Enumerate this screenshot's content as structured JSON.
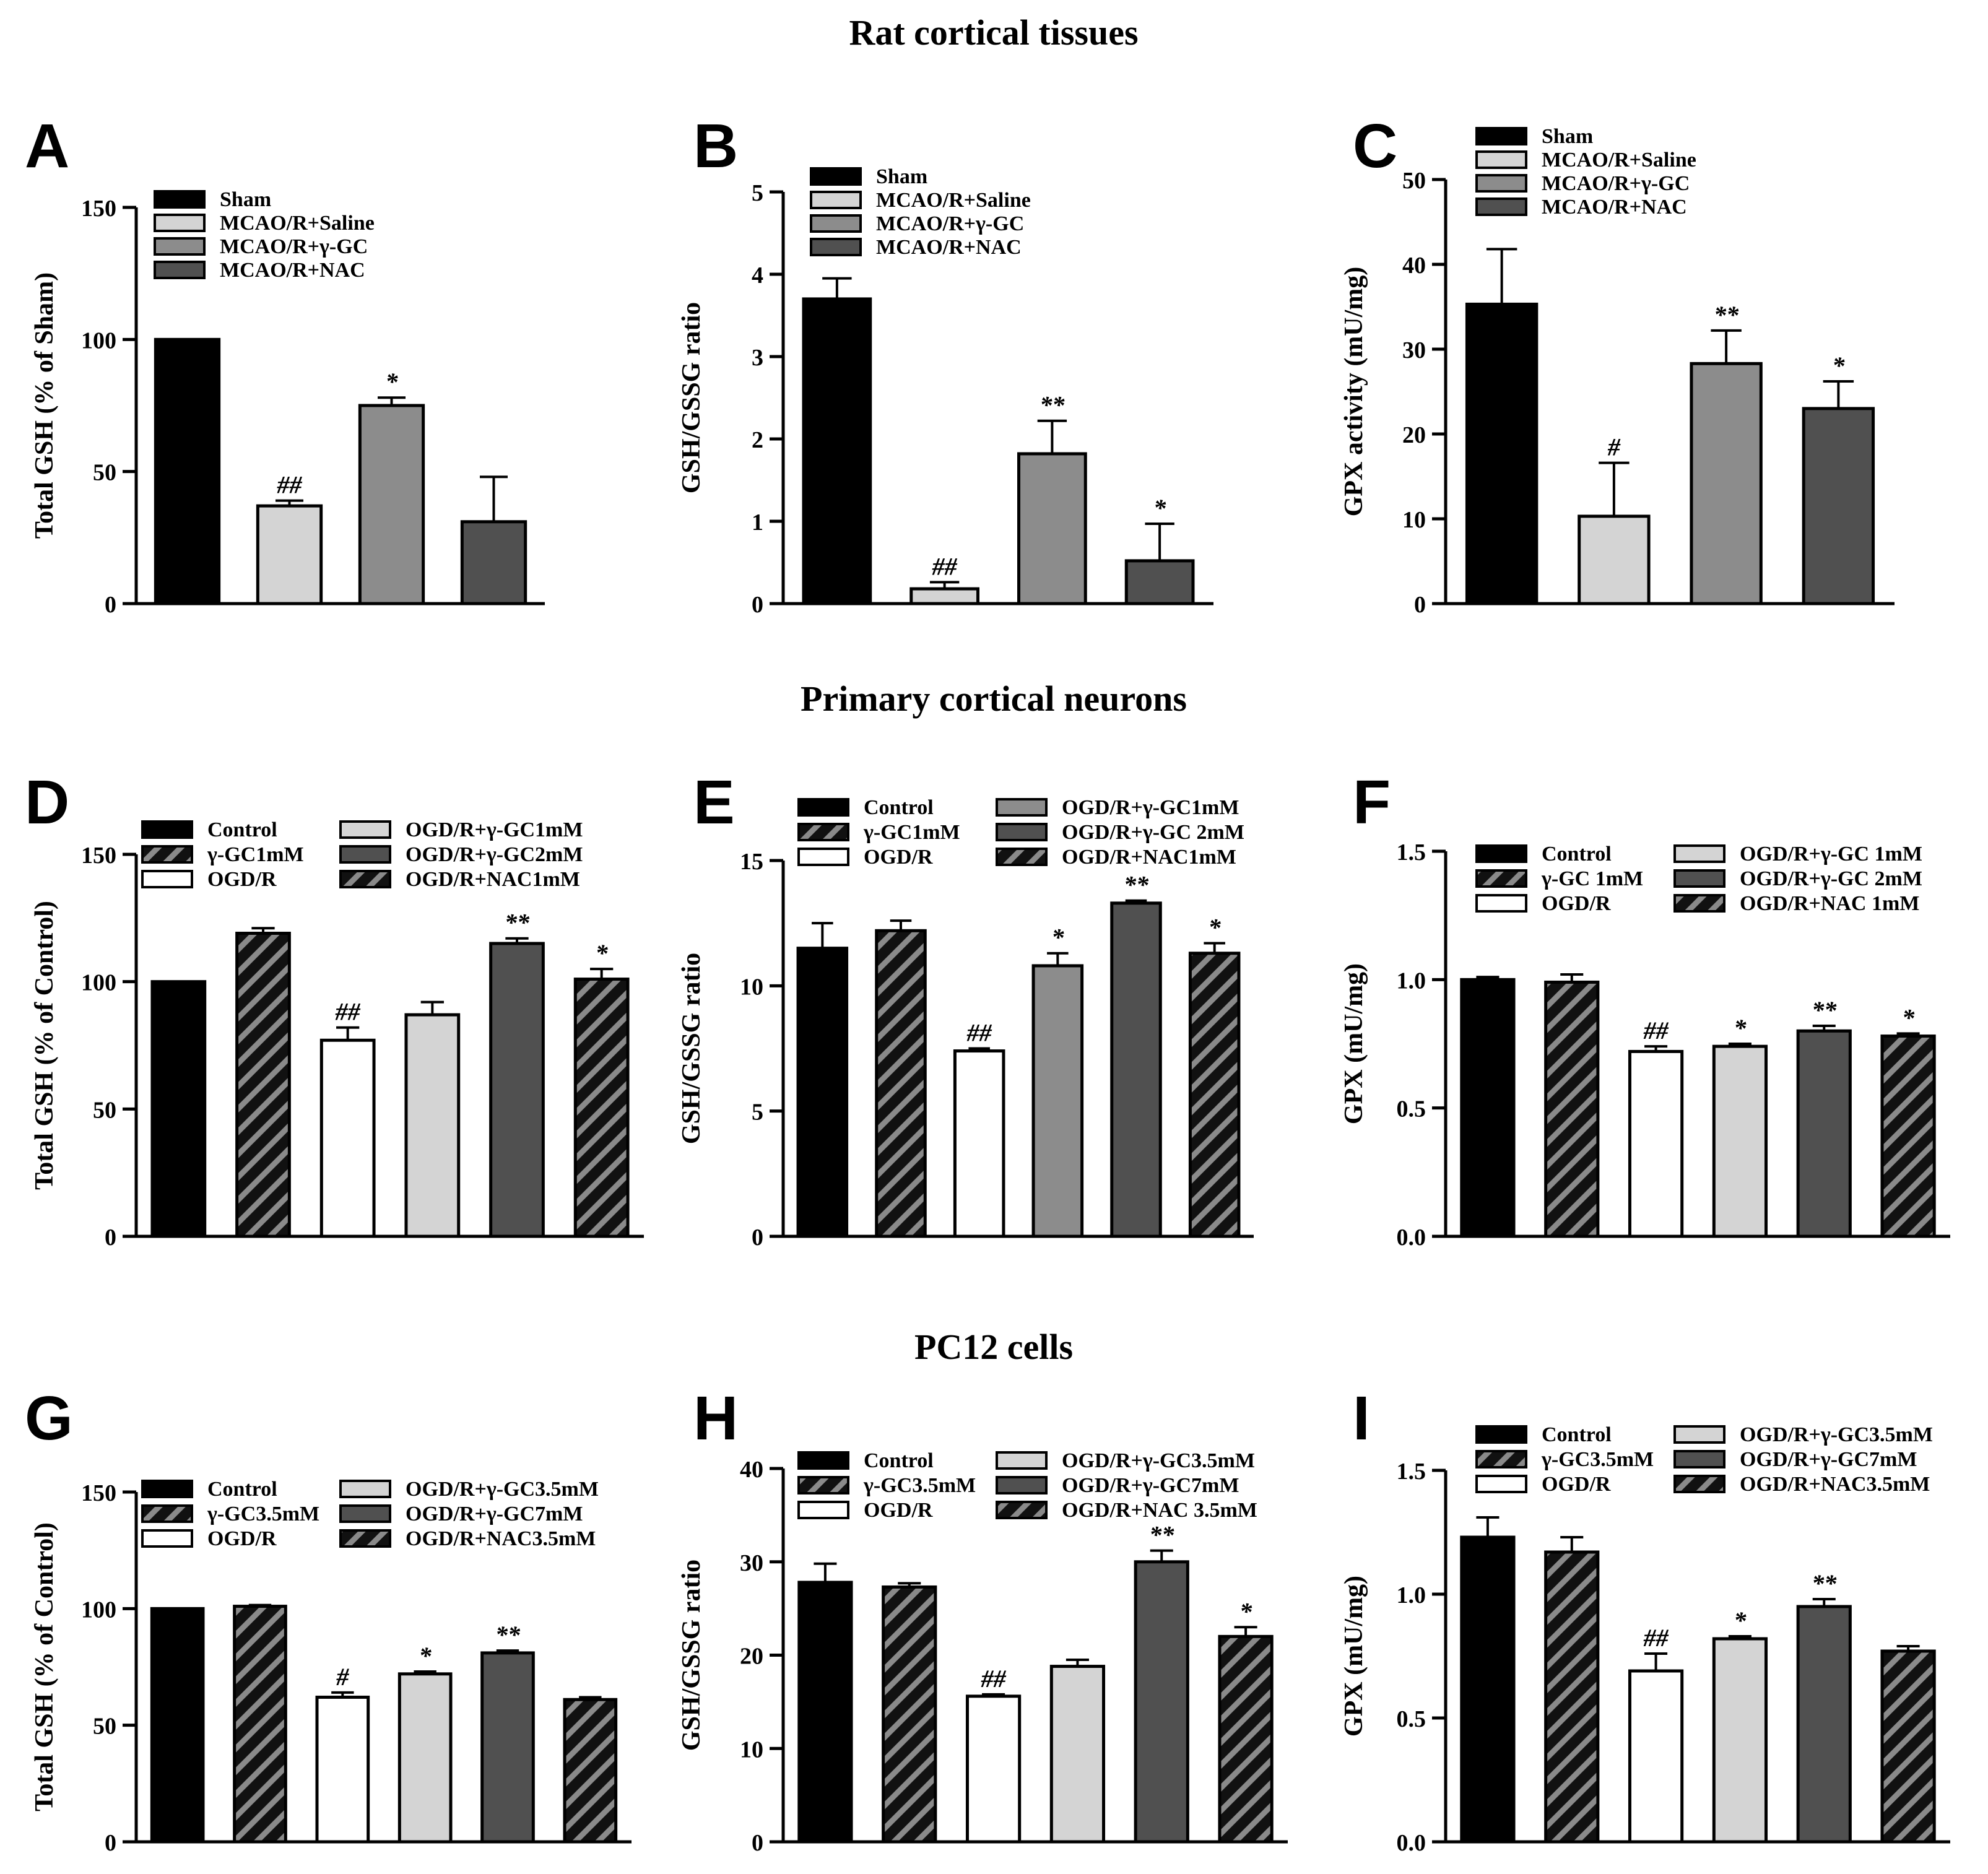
{
  "section_titles": [
    "Rat cortical tissues",
    "Primary cortical neurons",
    "PC12 cells"
  ],
  "colors": {
    "black": "#000000",
    "white": "#ffffff",
    "light_gray": "#d4d4d4",
    "mid_gray": "#8c8c8c",
    "dark_gray": "#505050",
    "hatch_gray": "#8a8a8a",
    "axis": "#000000"
  },
  "chart_data": [
    {
      "panel": "A",
      "type": "bar",
      "title": "",
      "ylabel": "Total GSH (% of Sham)",
      "xlabel": "",
      "ylim": [
        0,
        150
      ],
      "yticks": [
        "0",
        "50",
        "100",
        "150"
      ],
      "legend_position": "top-left",
      "categories": [
        "Sham",
        "MCAO/R+Saline",
        "MCAO/R+γ-GC",
        "MCAO/R+NAC"
      ],
      "values": [
        100,
        37,
        75,
        31
      ],
      "errors": [
        0,
        2,
        3,
        17
      ],
      "significance": [
        "",
        "##",
        "*",
        ""
      ],
      "fills": [
        "black",
        "light_gray",
        "mid_gray",
        "dark_gray"
      ],
      "hatched": [
        false,
        false,
        false,
        false
      ]
    },
    {
      "panel": "B",
      "type": "bar",
      "title": "",
      "ylabel": "GSH/GSSG ratio",
      "xlabel": "",
      "ylim": [
        0,
        5
      ],
      "yticks": [
        "0",
        "1",
        "2",
        "3",
        "4",
        "5"
      ],
      "legend_position": "top-left",
      "categories": [
        "Sham",
        "MCAO/R+Saline",
        "MCAO/R+γ-GC",
        "MCAO/R+NAC"
      ],
      "values": [
        3.7,
        0.18,
        1.82,
        0.52
      ],
      "errors": [
        0.25,
        0.08,
        0.4,
        0.45
      ],
      "significance": [
        "",
        "##",
        "**",
        "*"
      ],
      "fills": [
        "black",
        "light_gray",
        "mid_gray",
        "dark_gray"
      ],
      "hatched": [
        false,
        false,
        false,
        false
      ]
    },
    {
      "panel": "C",
      "type": "bar",
      "title": "",
      "ylabel": "GPX activity (mU/mg)",
      "xlabel": "",
      "ylim": [
        0,
        50
      ],
      "yticks": [
        "0",
        "10",
        "20",
        "30",
        "40",
        "50"
      ],
      "legend_position": "top-left",
      "categories": [
        "Sham",
        "MCAO/R+Saline",
        "MCAO/R+γ-GC",
        "MCAO/R+NAC"
      ],
      "values": [
        35.3,
        10.3,
        28.3,
        23
      ],
      "errors": [
        6.5,
        6.3,
        3.9,
        3.2
      ],
      "significance": [
        "",
        "#",
        "**",
        "*"
      ],
      "fills": [
        "black",
        "light_gray",
        "mid_gray",
        "dark_gray"
      ],
      "hatched": [
        false,
        false,
        false,
        false
      ]
    },
    {
      "panel": "D",
      "type": "bar",
      "title": "",
      "ylabel": "Total GSH (% of Control)",
      "xlabel": "",
      "ylim": [
        0,
        150
      ],
      "yticks": [
        "0",
        "50",
        "100",
        "150"
      ],
      "legend_position": "top",
      "categories": [
        "Control",
        "γ-GC1mM",
        "OGD/R",
        "OGD/R+γ-GC1mM",
        "OGD/R+γ-GC2mM",
        "OGD/R+NAC1mM"
      ],
      "values": [
        100,
        119,
        77,
        87,
        115,
        101
      ],
      "errors": [
        0,
        2,
        5,
        5,
        2,
        4
      ],
      "significance": [
        "",
        "",
        "##",
        "",
        "**",
        "*"
      ],
      "fills": [
        "black",
        "black",
        "white",
        "light_gray",
        "dark_gray",
        "black"
      ],
      "hatched": [
        false,
        true,
        false,
        false,
        false,
        true
      ]
    },
    {
      "panel": "E",
      "type": "bar",
      "title": "",
      "ylabel": "GSH/GSSG ratio",
      "xlabel": "",
      "ylim": [
        0,
        15
      ],
      "yticks": [
        "0",
        "5",
        "10",
        "15"
      ],
      "legend_position": "top",
      "categories": [
        "Control",
        "γ-GC1mM",
        "OGD/R",
        "OGD/R+γ-GC1mM",
        "OGD/R+γ-GC 2mM",
        "OGD/R+NAC1mM"
      ],
      "values": [
        11.5,
        12.2,
        7.4,
        10.8,
        13.3,
        11.3
      ],
      "errors": [
        1.0,
        0.4,
        0.1,
        0.5,
        0.1,
        0.4
      ],
      "significance": [
        "",
        "",
        "##",
        "*",
        "**",
        "*"
      ],
      "fills": [
        "black",
        "black",
        "white",
        "mid_gray",
        "dark_gray",
        "black"
      ],
      "hatched": [
        false,
        true,
        false,
        false,
        false,
        true
      ]
    },
    {
      "panel": "F",
      "type": "bar",
      "title": "",
      "ylabel": "GPX (mU/mg)",
      "xlabel": "",
      "ylim": [
        0,
        1.5
      ],
      "yticks": [
        "0.0",
        "0.5",
        "1.0",
        "1.5"
      ],
      "legend_position": "top",
      "categories": [
        "Control",
        "γ-GC 1mM",
        "OGD/R",
        "OGD/R+γ-GC 1mM",
        "OGD/R+γ-GC 2mM",
        "OGD/R+NAC 1mM"
      ],
      "values": [
        1.0,
        0.99,
        0.72,
        0.74,
        0.8,
        0.78
      ],
      "errors": [
        0.01,
        0.03,
        0.02,
        0.01,
        0.02,
        0.01
      ],
      "significance": [
        "",
        "",
        "##",
        "*",
        "**",
        "*"
      ],
      "fills": [
        "black",
        "black",
        "white",
        "light_gray",
        "dark_gray",
        "black"
      ],
      "hatched": [
        false,
        true,
        false,
        false,
        false,
        true
      ]
    },
    {
      "panel": "G",
      "type": "bar",
      "title": "",
      "ylabel": "Total GSH (% of Control)",
      "xlabel": "",
      "ylim": [
        0,
        150
      ],
      "yticks": [
        "0",
        "50",
        "100",
        "150"
      ],
      "legend_position": "top",
      "categories": [
        "Control",
        "γ-GC3.5mM",
        "OGD/R",
        "OGD/R+γ-GC3.5mM",
        "OGD/R+γ-GC7mM",
        "OGD/R+NAC3.5mM"
      ],
      "values": [
        100,
        101,
        62,
        72,
        81,
        61
      ],
      "errors": [
        0,
        0.5,
        2,
        1,
        1,
        1
      ],
      "significance": [
        "",
        "",
        "#",
        "*",
        "**",
        ""
      ],
      "fills": [
        "black",
        "black",
        "white",
        "light_gray",
        "dark_gray",
        "black"
      ],
      "hatched": [
        false,
        true,
        false,
        false,
        false,
        true
      ]
    },
    {
      "panel": "H",
      "type": "bar",
      "title": "",
      "ylabel": "GSH/GSSG ratio",
      "xlabel": "",
      "ylim": [
        0,
        40
      ],
      "yticks": [
        "0",
        "10",
        "20",
        "30",
        "40"
      ],
      "legend_position": "top",
      "categories": [
        "Control",
        "γ-GC3.5mM",
        "OGD/R",
        "OGD/R+γ-GC3.5mM",
        "OGD/R+γ-GC7mM",
        "OGD/R+NAC 3.5mM"
      ],
      "values": [
        27.8,
        27.3,
        15.6,
        18.8,
        30,
        22
      ],
      "errors": [
        2,
        0.4,
        0.2,
        0.7,
        1.2,
        1
      ],
      "significance": [
        "",
        "",
        "##",
        "",
        "**",
        "*"
      ],
      "fills": [
        "black",
        "black",
        "white",
        "light_gray",
        "dark_gray",
        "black"
      ],
      "hatched": [
        false,
        true,
        false,
        false,
        false,
        true
      ]
    },
    {
      "panel": "I",
      "type": "bar",
      "title": "",
      "ylabel": "GPX (mU/mg)",
      "xlabel": "",
      "ylim": [
        0,
        1.5
      ],
      "yticks": [
        "0.0",
        "0.5",
        "1.0",
        "1.5"
      ],
      "legend_position": "top",
      "categories": [
        "Control",
        "γ-GC3.5mM",
        "OGD/R",
        "OGD/R+γ-GC3.5mM",
        "OGD/R+γ-GC7mM",
        "OGD/R+NAC3.5mM"
      ],
      "values": [
        1.23,
        1.17,
        0.69,
        0.82,
        0.95,
        0.77
      ],
      "errors": [
        0.08,
        0.06,
        0.07,
        0.01,
        0.03,
        0.02
      ],
      "significance": [
        "",
        "",
        "##",
        "*",
        "**",
        ""
      ],
      "fills": [
        "black",
        "black",
        "white",
        "light_gray",
        "dark_gray",
        "black"
      ],
      "hatched": [
        false,
        true,
        false,
        false,
        false,
        true
      ]
    }
  ]
}
